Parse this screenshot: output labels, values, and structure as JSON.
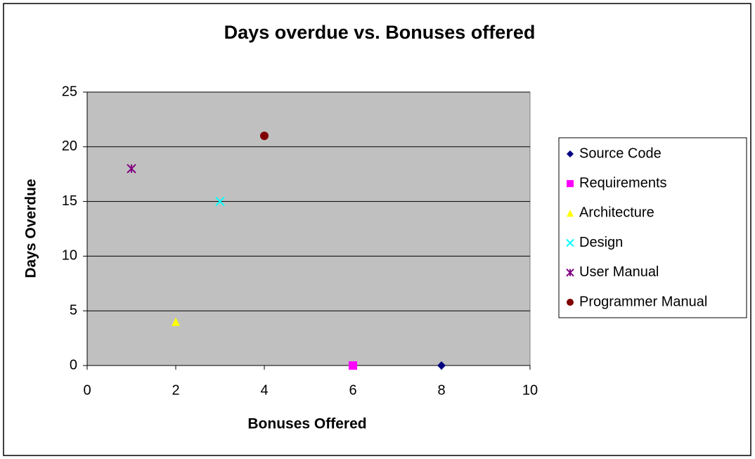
{
  "chart_data": {
    "type": "scatter",
    "title": "Days overdue vs. Bonuses offered",
    "x_label": "Bonuses Offered",
    "y_label": "Days Overdue",
    "xlim": [
      0,
      10
    ],
    "xticks": [
      0,
      2,
      4,
      6,
      8,
      10
    ],
    "ylim": [
      0,
      25
    ],
    "yticks": [
      0,
      5,
      10,
      15,
      20,
      25
    ],
    "grid": true,
    "legend": "right",
    "series": [
      {
        "name": "Source Code",
        "color": "#000080",
        "marker": "diamond",
        "x": [
          8
        ],
        "values": [
          0
        ]
      },
      {
        "name": "Requirements",
        "color": "#ff00ff",
        "marker": "square",
        "x": [
          6
        ],
        "values": [
          0
        ]
      },
      {
        "name": "Architecture",
        "color": "#ffff00",
        "marker": "triangle",
        "x": [
          2
        ],
        "values": [
          4
        ]
      },
      {
        "name": "Design",
        "color": "#00ffff",
        "marker": "x",
        "x": [
          3
        ],
        "values": [
          15
        ]
      },
      {
        "name": "User Manual",
        "color": "#800080",
        "marker": "star",
        "x": [
          1
        ],
        "values": [
          18
        ]
      },
      {
        "name": "Programmer Manual",
        "color": "#800000",
        "marker": "circle",
        "x": [
          4
        ],
        "values": [
          21
        ]
      }
    ]
  }
}
